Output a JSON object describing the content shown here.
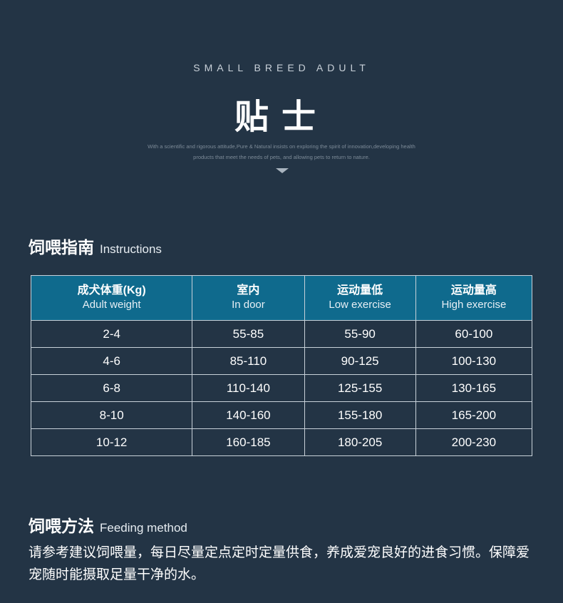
{
  "header": {
    "eyebrow": "SMALL BREED ADULT",
    "title": "贴士",
    "subtitle_line1": "With a scientific and rigorous attitude,Pure & Natural insists on exploring the spirit of innovation,developing health",
    "subtitle_line2": "products that meet the needs of pets, and allowing pets to return to nature."
  },
  "feeding_guide": {
    "heading_cn": "饲喂指南",
    "heading_en": "Instructions",
    "columns": [
      {
        "cn": "成犬体重(Kg)",
        "en": "Adult weight"
      },
      {
        "cn": "室内",
        "en": "In door"
      },
      {
        "cn": "运动量低",
        "en": "Low exercise"
      },
      {
        "cn": "运动量高",
        "en": "High exercise"
      }
    ],
    "rows": [
      [
        "2-4",
        "55-85",
        "55-90",
        "60-100"
      ],
      [
        "4-6",
        "85-110",
        "90-125",
        "100-130"
      ],
      [
        "6-8",
        "110-140",
        "125-155",
        "130-165"
      ],
      [
        "8-10",
        "140-160",
        "155-180",
        "165-200"
      ],
      [
        "10-12",
        "160-185",
        "180-205",
        "200-230"
      ]
    ]
  },
  "feeding_method": {
    "heading_cn": "饲喂方法",
    "heading_en": "Feeding method",
    "text": "请参考建议饲喂量，每日尽量定点定时定量供食，养成爱宠良好的进食习惯。保障爱宠随时能摄取足量干净的水。"
  },
  "colors": {
    "background": "#233445",
    "table_header": "#0f6a8d",
    "table_border": "#c8d1d9"
  }
}
